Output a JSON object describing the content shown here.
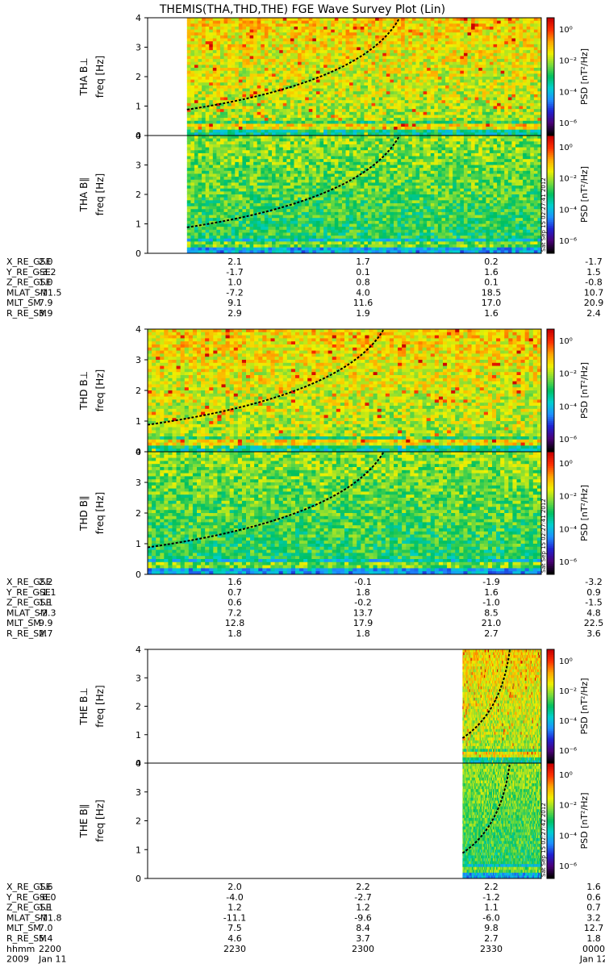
{
  "title": "THEMIS(THA,THD,THE) FGE Wave Survey Plot (Lin)",
  "chart_data": {
    "type": "heatmap",
    "x_axis": {
      "range": [
        "2200",
        "0000"
      ],
      "tick_labels": [
        "2200",
        "2230",
        "2300",
        "2330",
        "0000"
      ]
    },
    "probes": [
      {
        "id": "THA",
        "coverage_start": "2212",
        "panels": [
          {
            "label": "THA B⊥",
            "ylabel": "freq [Hz]",
            "ylim": [
              0,
              4
            ],
            "yticks": [
              "0",
              "1",
              "2",
              "3",
              "4"
            ],
            "curves": [
              {
                "type": "solid",
                "points": "tha_curves"
              }
            ]
          },
          {
            "label": "THA B∥",
            "ylabel": "freq [Hz]",
            "ylim": [
              0,
              4
            ],
            "yticks": [
              "0",
              "1",
              "2",
              "3",
              "4"
            ],
            "stamp": "Sat Sep 15 02:27:41 2012",
            "curves": [
              {
                "type": "solid",
                "points": "tha_curves"
              }
            ]
          }
        ],
        "ephemeris": {
          "labels": [
            "X_RE_GSE",
            "Y_RE_GSE",
            "Z_RE_GSE",
            "MLAT_SM",
            "MLT_SM",
            "R_RE_SM"
          ],
          "rows": [
            [
              "2.0",
              "2.1",
              "1.7",
              "0.2",
              "-1.7"
            ],
            [
              "-3.2",
              "-1.7",
              "0.1",
              "1.6",
              "1.5"
            ],
            [
              "1.0",
              "1.0",
              "0.8",
              "0.1",
              "-0.8"
            ],
            [
              "-11.5",
              "-7.2",
              "4.0",
              "18.5",
              "10.7"
            ],
            [
              "7.9",
              "9.1",
              "11.6",
              "17.0",
              "20.9"
            ],
            [
              "3.9",
              "2.9",
              "1.9",
              "1.6",
              "2.4"
            ]
          ]
        }
      },
      {
        "id": "THD",
        "coverage_start": "2200",
        "panels": [
          {
            "label": "THD B⊥",
            "ylabel": "freq [Hz]",
            "ylim": [
              0,
              4
            ],
            "yticks": [
              "0",
              "1",
              "2",
              "3",
              "4"
            ]
          },
          {
            "label": "THD B∥",
            "ylabel": "freq [Hz]",
            "ylim": [
              0,
              4
            ],
            "yticks": [
              "0",
              "1",
              "2",
              "3",
              "4"
            ],
            "stamp": "Sat Sep 15 02:27:41 2012"
          }
        ],
        "ephemeris": {
          "labels": [
            "X_RE_GSE",
            "Y_RE_GSE",
            "Z_RE_GSE",
            "MLAT_SM",
            "MLT_SM",
            "R_RE_SM"
          ],
          "rows": [
            [
              "2.2",
              "1.6",
              "-0.1",
              "-1.9",
              "-3.2"
            ],
            [
              "-1.1",
              "0.7",
              "1.8",
              "1.6",
              "0.9"
            ],
            [
              "1.1",
              "0.6",
              "-0.2",
              "-1.0",
              "-1.5"
            ],
            [
              "-2.3",
              "7.2",
              "13.7",
              "8.5",
              "4.8"
            ],
            [
              "9.9",
              "12.8",
              "17.9",
              "21.0",
              "22.5"
            ],
            [
              "2.7",
              "1.8",
              "1.8",
              "2.7",
              "3.6"
            ]
          ]
        }
      },
      {
        "id": "THE",
        "coverage_start": "2336",
        "panels": [
          {
            "label": "THE B⊥",
            "ylabel": "freq [Hz]",
            "ylim": [
              0,
              4
            ],
            "yticks": [
              "0",
              "1",
              "2",
              "3",
              "4"
            ]
          },
          {
            "label": "THE B∥",
            "ylabel": "freq [Hz]",
            "ylim": [
              0,
              4
            ],
            "yticks": [
              "0",
              "1",
              "2",
              "3",
              "4"
            ],
            "stamp": "Sat Sep 15 02:27:42 2012"
          }
        ],
        "ephemeris": {
          "labels": [
            "X_RE_GSE",
            "Y_RE_GSE",
            "Z_RE_GSE",
            "MLAT_SM",
            "MLT_SM",
            "R_RE_SM",
            "hhmm",
            "2009"
          ],
          "rows": [
            [
              "1.6",
              "2.0",
              "2.2",
              "2.2",
              "1.6"
            ],
            [
              "-6.0",
              "-4.0",
              "-2.7",
              "-1.2",
              "0.6"
            ],
            [
              "1.1",
              "1.2",
              "1.2",
              "1.1",
              "0.7"
            ],
            [
              "-11.8",
              "-11.1",
              "-9.6",
              "-6.0",
              "3.2"
            ],
            [
              "7.0",
              "7.5",
              "8.4",
              "9.8",
              "12.7"
            ],
            [
              "5.4",
              "4.6",
              "3.7",
              "2.7",
              "1.8"
            ],
            [
              "2200",
              "2230",
              "2300",
              "2330",
              "0000"
            ],
            [
              "Jan 11",
              "",
              "",
              "",
              "Jan 12"
            ]
          ]
        }
      }
    ],
    "colorbar": {
      "label": "PSD [nT²/Hz]",
      "tick_labels": [
        "10⁰",
        "10⁻²",
        "10⁻⁴",
        "10⁻⁶"
      ],
      "log_range": [
        -7,
        1.6
      ],
      "colormap": [
        "#000000",
        "#4a0078",
        "#2020d0",
        "#1e90ff",
        "#00d0d0",
        "#00c060",
        "#7cdc3a",
        "#f0f000",
        "#ffa500",
        "#ff3000",
        "#c80000"
      ]
    }
  }
}
